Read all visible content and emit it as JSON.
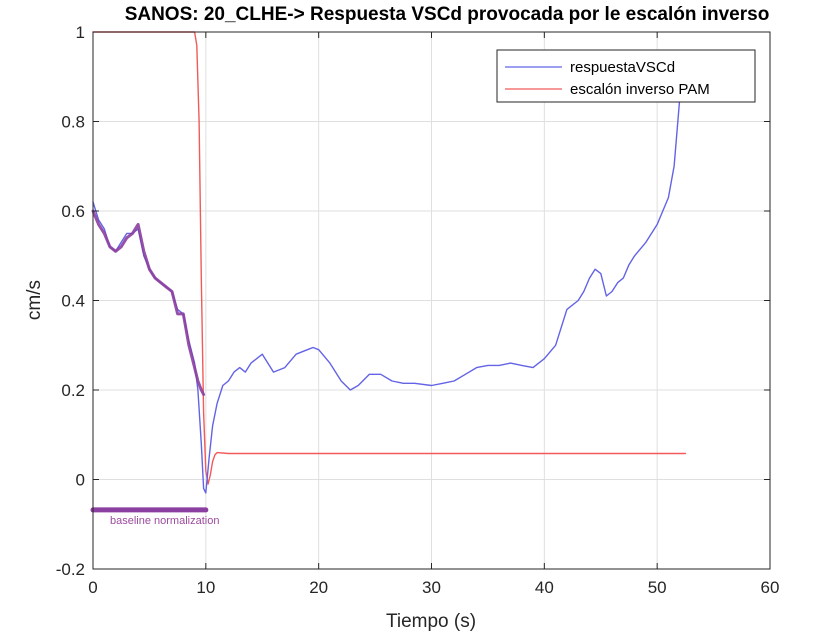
{
  "chart_data": {
    "type": "line",
    "title": "SANOS: 20_CLHE-> Respuesta VSCd provocada por le escalón inverso",
    "xlabel": "Tiempo (s)",
    "ylabel": "cm/s",
    "xlim": [
      0,
      60
    ],
    "ylim": [
      -0.2,
      1
    ],
    "xticks": [
      0,
      10,
      20,
      30,
      40,
      50,
      60
    ],
    "yticks": [
      -0.2,
      0,
      0.2,
      0.4,
      0.6,
      0.8,
      1
    ],
    "xtick_labels": [
      "0",
      "10",
      "20",
      "30",
      "40",
      "50",
      "60"
    ],
    "ytick_labels": [
      "-0.2",
      "0",
      "0.2",
      "0.4",
      "0.6",
      "0.8",
      "1"
    ],
    "grid": true,
    "legend_position": "top-right",
    "series": [
      {
        "name": "respuestaVSCd",
        "color": "#6363e6",
        "x": [
          0,
          0.5,
          1,
          1.5,
          2,
          2.5,
          3,
          3.5,
          4,
          4.5,
          5,
          5.5,
          6,
          6.5,
          7,
          7.5,
          8,
          8.5,
          9,
          9.3,
          9.6,
          9.8,
          10,
          10.3,
          10.6,
          11,
          11.5,
          12,
          12.5,
          13,
          13.5,
          14,
          15,
          16,
          17,
          18,
          19,
          19.5,
          20,
          21,
          22,
          22.8,
          23.5,
          24.5,
          25.5,
          26.5,
          27.5,
          28.5,
          30,
          31,
          32,
          33,
          34,
          35,
          36,
          37,
          38,
          39,
          40,
          41,
          42,
          43,
          43.5,
          44,
          44.5,
          45,
          45.5,
          46,
          46.5,
          47,
          47.5,
          48,
          49,
          50,
          50.5,
          51,
          51.5,
          52,
          52.3
        ],
        "y": [
          0.62,
          0.58,
          0.56,
          0.52,
          0.51,
          0.53,
          0.55,
          0.55,
          0.56,
          0.5,
          0.47,
          0.45,
          0.44,
          0.43,
          0.42,
          0.38,
          0.37,
          0.31,
          0.26,
          0.2,
          0.08,
          -0.02,
          -0.03,
          0.05,
          0.12,
          0.17,
          0.21,
          0.22,
          0.24,
          0.25,
          0.24,
          0.26,
          0.28,
          0.24,
          0.25,
          0.28,
          0.29,
          0.295,
          0.29,
          0.26,
          0.22,
          0.2,
          0.21,
          0.235,
          0.235,
          0.22,
          0.215,
          0.215,
          0.21,
          0.215,
          0.22,
          0.235,
          0.25,
          0.255,
          0.255,
          0.26,
          0.255,
          0.25,
          0.27,
          0.3,
          0.38,
          0.4,
          0.42,
          0.45,
          0.47,
          0.46,
          0.41,
          0.42,
          0.44,
          0.45,
          0.48,
          0.5,
          0.53,
          0.57,
          0.6,
          0.63,
          0.7,
          0.85,
          0.95
        ]
      },
      {
        "name": "escalón inverso PAM",
        "color": "#f25a5a",
        "x": [
          0,
          9.0,
          9.2,
          9.4,
          9.6,
          9.8,
          10.0,
          10.2,
          10.4,
          10.6,
          10.8,
          11.0,
          12,
          52.5
        ],
        "y": [
          1,
          1,
          0.97,
          0.8,
          0.45,
          0.15,
          0.02,
          -0.01,
          0.01,
          0.04,
          0.055,
          0.06,
          0.058,
          0.058
        ]
      },
      {
        "name": "",
        "color": "#8b3fa0",
        "x": [
          0,
          0.5,
          1,
          1.5,
          2,
          2.5,
          3,
          3.5,
          4,
          4.5,
          5,
          5.5,
          6,
          6.5,
          7,
          7.5,
          8,
          8.5,
          9,
          9.3,
          9.6,
          9.8
        ],
        "y": [
          0.6,
          0.57,
          0.55,
          0.52,
          0.51,
          0.52,
          0.54,
          0.55,
          0.57,
          0.51,
          0.47,
          0.45,
          0.44,
          0.43,
          0.42,
          0.37,
          0.37,
          0.3,
          0.25,
          0.22,
          0.2,
          0.19
        ]
      }
    ],
    "baseline": {
      "x": [
        0,
        10
      ],
      "y": -0.068,
      "color": "#8b3fa0"
    },
    "annotation": "baseline normalization"
  }
}
